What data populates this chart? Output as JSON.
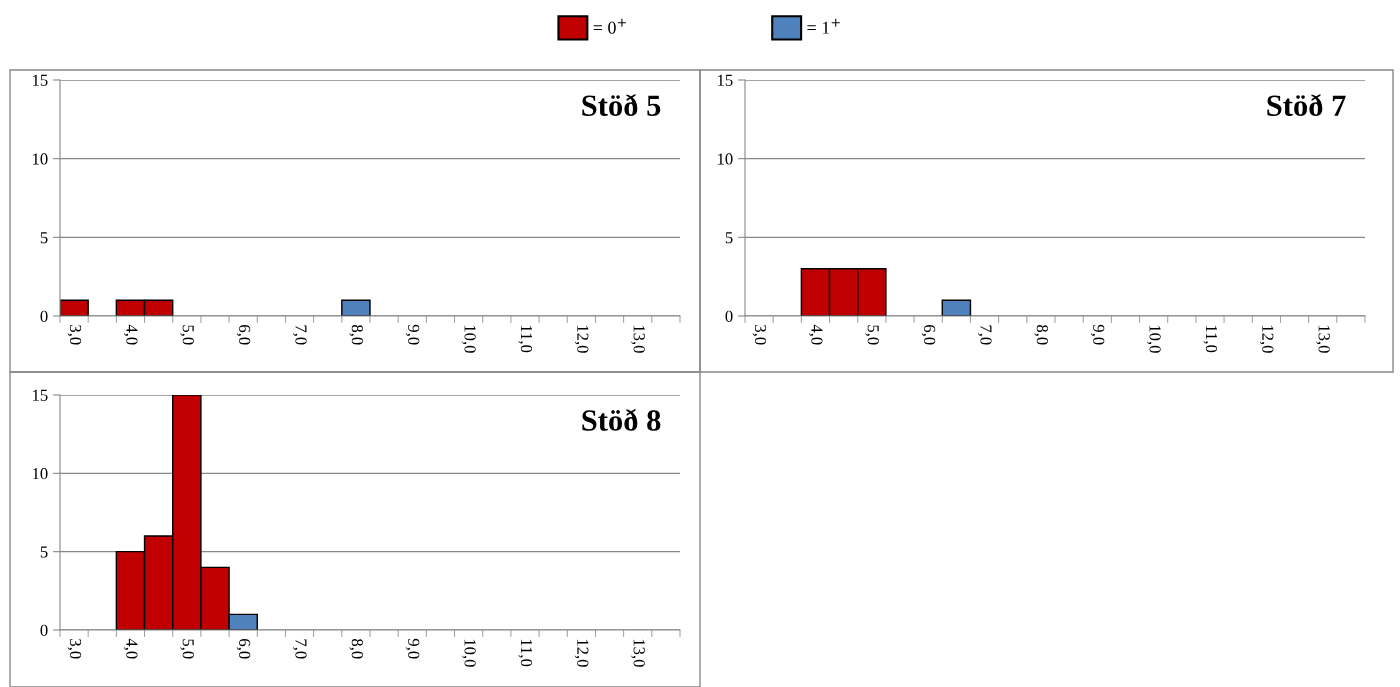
{
  "chart_data": [
    {
      "type": "bar",
      "title": "Stöð 5",
      "legend": "top",
      "grid": "y",
      "ylim": [
        0,
        15
      ],
      "yticks": [
        0,
        5,
        10,
        15
      ],
      "categories": [
        "3,0",
        null,
        "4,0",
        null,
        "5,0",
        null,
        "6,0",
        null,
        "7,0",
        null,
        "8,0",
        null,
        "9,0",
        null,
        "10,0",
        null,
        "11,0",
        null,
        "12,0",
        null,
        "13,0",
        null
      ],
      "series": [
        {
          "name": "= 0$^{+}$",
          "color": "#c00000",
          "values": [
            1,
            null,
            1,
            1,
            null,
            null,
            null,
            null,
            null,
            null,
            null,
            null,
            null,
            null,
            null,
            null,
            null,
            null,
            null,
            null,
            null,
            null
          ]
        },
        {
          "name": "= 1$^{+}$",
          "color": "#4f81bd",
          "values": [
            null,
            null,
            null,
            null,
            null,
            null,
            null,
            null,
            null,
            null,
            1,
            null,
            null,
            null,
            null,
            null,
            null,
            null,
            null,
            null,
            null,
            null
          ]
        }
      ]
    },
    {
      "type": "bar",
      "title": "Stöð 7",
      "grid": "y",
      "ylim": [
        0,
        15
      ],
      "yticks": [
        0,
        5,
        10,
        15
      ],
      "categories": [
        "3,0",
        null,
        "4,0",
        null,
        "5,0",
        null,
        "6,0",
        null,
        "7,0",
        null,
        "8,0",
        null,
        "9,0",
        null,
        "10,0",
        null,
        "11,0",
        null,
        "12,0",
        null,
        "13,0",
        null
      ],
      "series": [
        {
          "color": "#c00000",
          "values": [
            null,
            null,
            3,
            3,
            3,
            null,
            null,
            null,
            null,
            null,
            null,
            null,
            null,
            null,
            null,
            null,
            null,
            null,
            null,
            null,
            null,
            null
          ]
        },
        {
          "color": "#4f81bd",
          "values": [
            null,
            null,
            null,
            null,
            null,
            null,
            null,
            1,
            null,
            null,
            null,
            null,
            null,
            null,
            null,
            null,
            null,
            null,
            null,
            null,
            null,
            null
          ]
        }
      ]
    },
    {
      "type": "bar",
      "title": "Stöð 8",
      "grid": "y",
      "ylim": [
        0,
        15
      ],
      "yticks": [
        0,
        5,
        10,
        15
      ],
      "categories": [
        "3,0",
        null,
        "4,0",
        null,
        "5,0",
        null,
        "6,0",
        null,
        "7,0",
        null,
        "8,0",
        null,
        "9,0",
        null,
        "10,0",
        null,
        "11,0",
        null,
        "12,0",
        null,
        "13,0",
        null
      ],
      "series": [
        {
          "color": "#c00000",
          "values": [
            null,
            null,
            5,
            6,
            15,
            4,
            null,
            null,
            null,
            null,
            null,
            null,
            null,
            null,
            null,
            null,
            null,
            null,
            null,
            null,
            null,
            null
          ]
        },
        {
          "color": "#4f81bd",
          "values": [
            null,
            null,
            null,
            null,
            null,
            null,
            1,
            null,
            null,
            null,
            null,
            null,
            null,
            null,
            null,
            null,
            null,
            null,
            null,
            null,
            null,
            null
          ]
        }
      ]
    }
  ]
}
